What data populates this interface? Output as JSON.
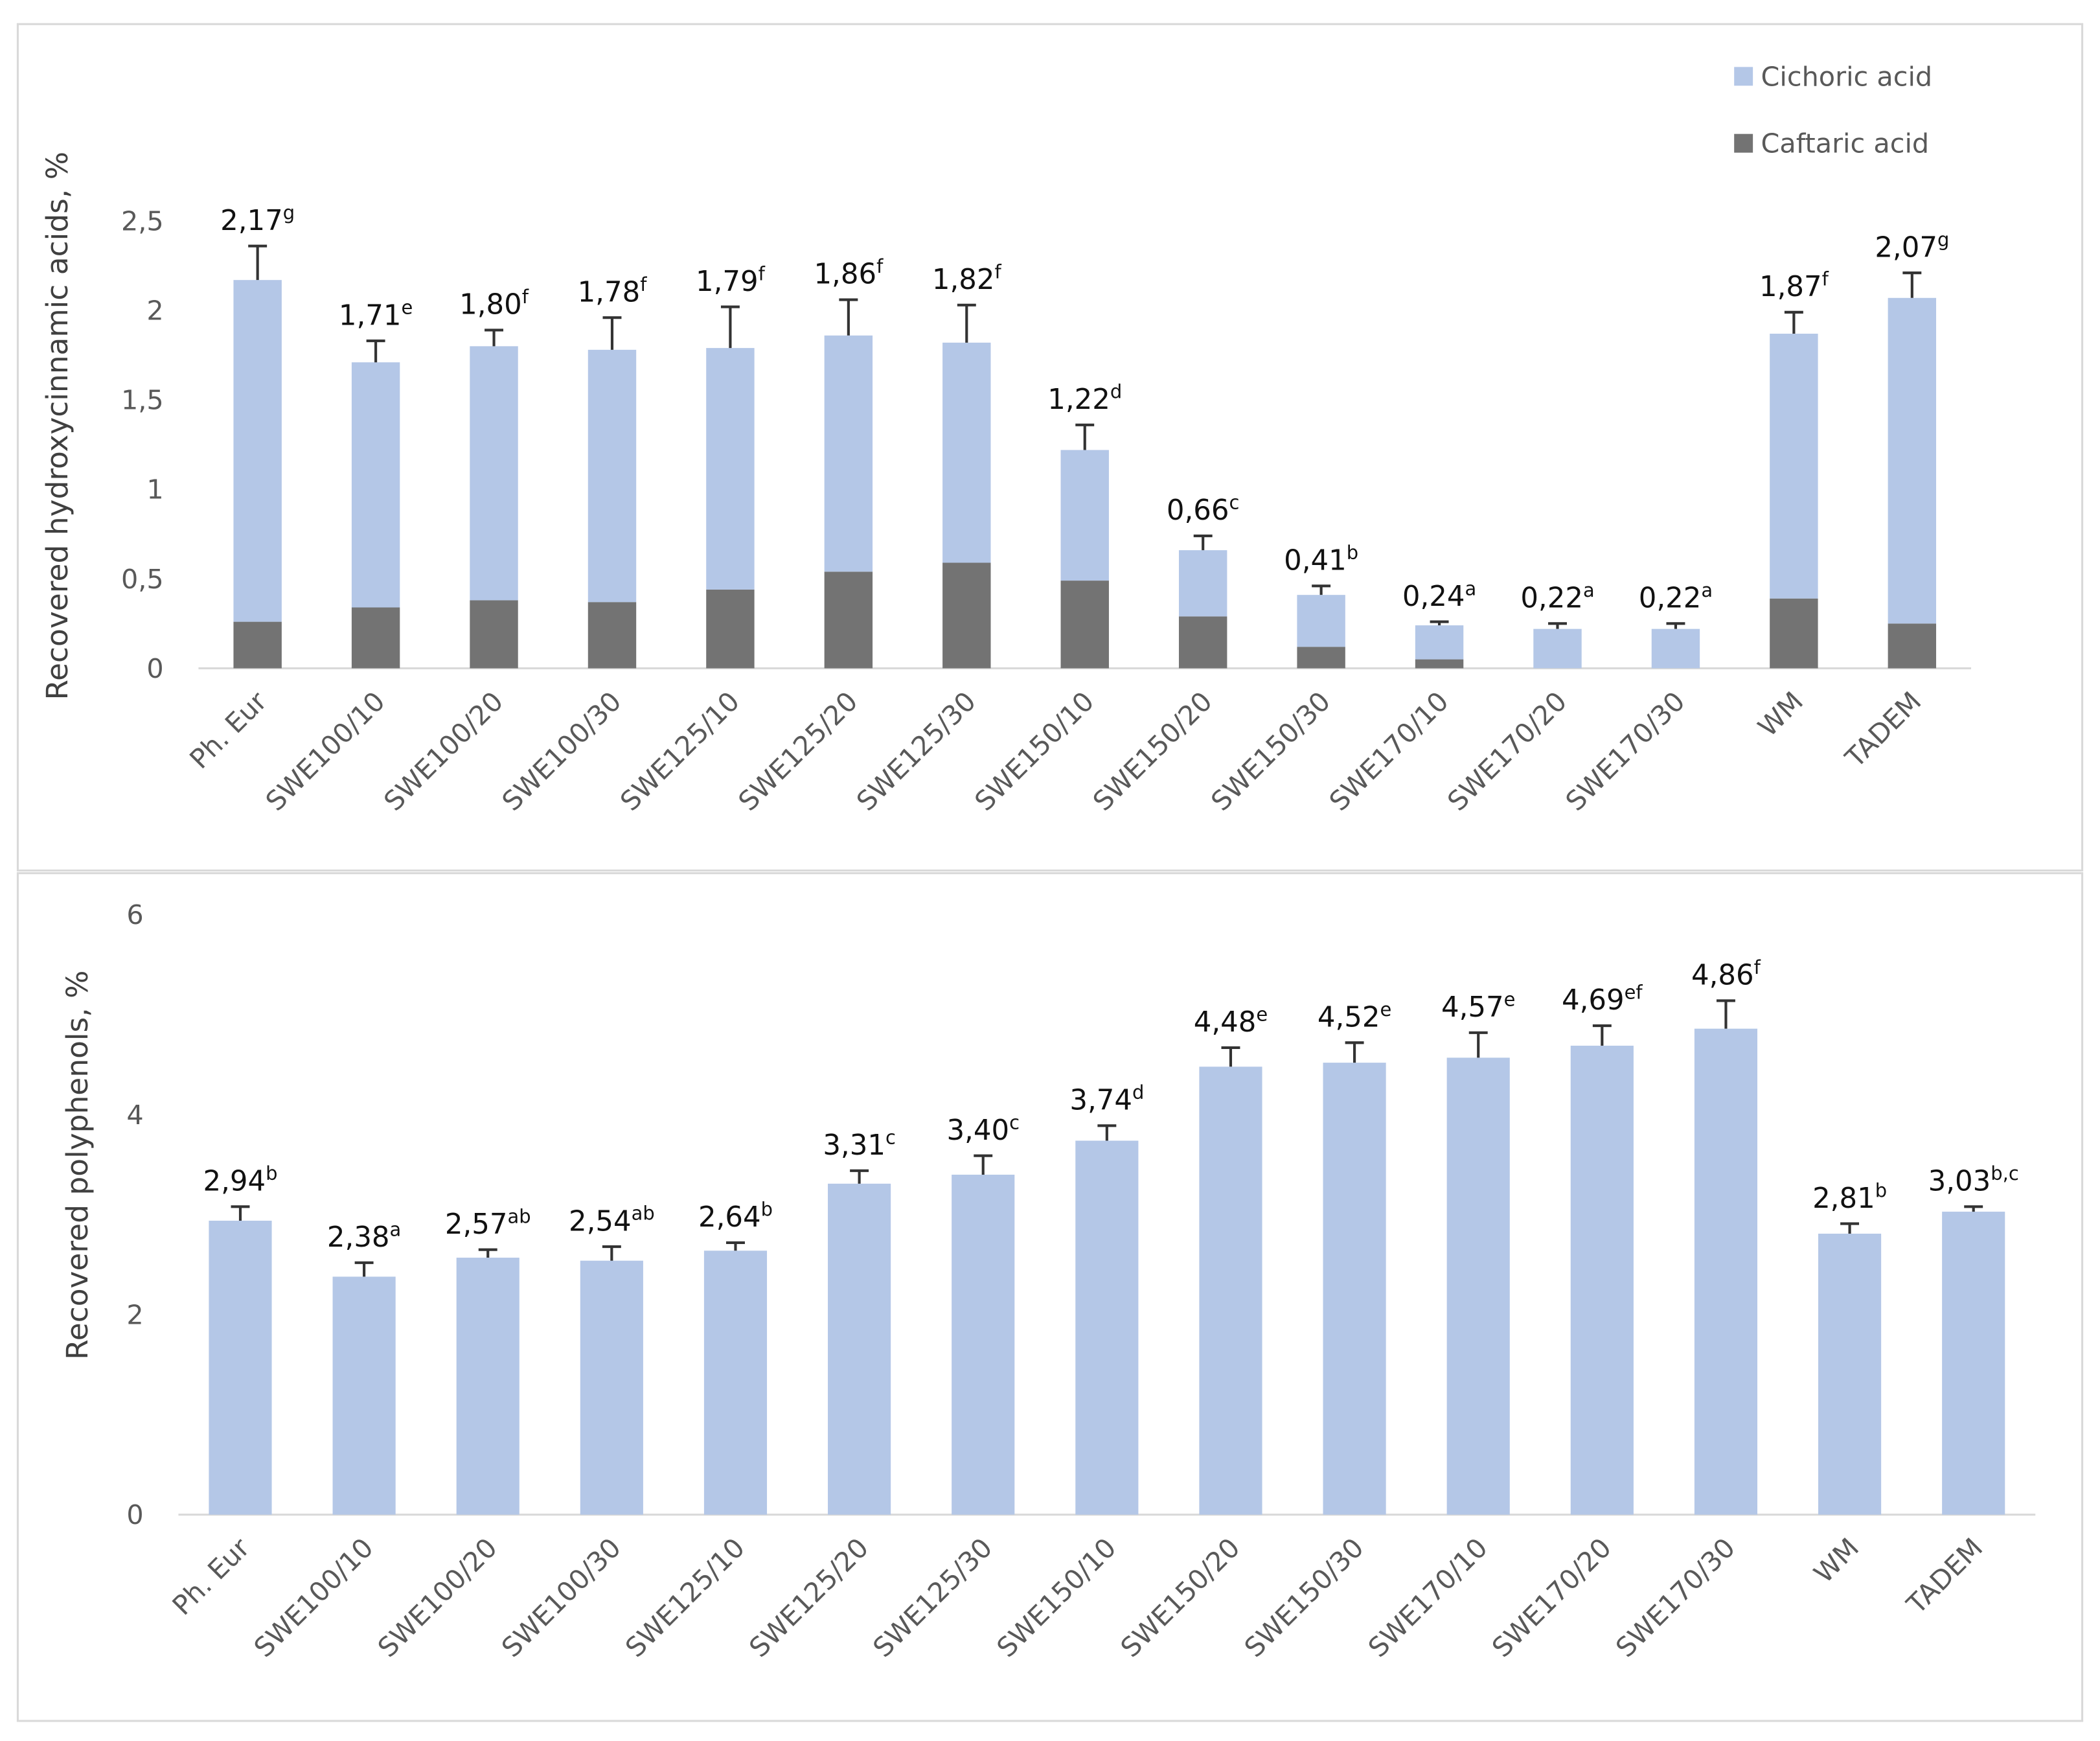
{
  "chart_data": [
    {
      "type": "bar",
      "y_label": "Recovered hydroxycinnamic acids, %",
      "categories": [
        "Ph. Eur",
        "SWE100/10",
        "SWE100/20",
        "SWE100/30",
        "SWE125/10",
        "SWE125/20",
        "SWE125/30",
        "SWE150/10",
        "SWE150/20",
        "SWE150/30",
        "SWE170/10",
        "SWE170/20",
        "SWE170/30",
        "WM",
        "TADEM"
      ],
      "series": [
        {
          "name": "Caftaric acid",
          "color": "#737373",
          "values": [
            0.26,
            0.34,
            0.38,
            0.37,
            0.44,
            0.54,
            0.59,
            0.49,
            0.29,
            0.12,
            0.05,
            0,
            0,
            0.39,
            0.25
          ]
        },
        {
          "name": "Cichoric acid",
          "color": "#b4c7e7",
          "values": [
            1.91,
            1.37,
            1.42,
            1.41,
            1.35,
            1.32,
            1.23,
            0.73,
            0.37,
            0.29,
            0.19,
            0.22,
            0.22,
            1.48,
            1.82
          ]
        }
      ],
      "totals": [
        2.17,
        1.71,
        1.8,
        1.78,
        1.79,
        1.86,
        1.82,
        1.22,
        0.66,
        0.41,
        0.24,
        0.22,
        0.22,
        1.87,
        2.07
      ],
      "total_labels": [
        "2,17",
        "1,71",
        "1,80",
        "1,78",
        "1,79",
        "1,86",
        "1,82",
        "1,22",
        "0,66",
        "0,41",
        "0,24",
        "0,22",
        "0,22",
        "1,87",
        "2,07"
      ],
      "letters": [
        "g",
        "e",
        "f",
        "f",
        "f",
        "f",
        "f",
        "d",
        "c",
        "b",
        "a",
        "a",
        "a",
        "f",
        "g"
      ],
      "errors": [
        0.19,
        0.12,
        0.09,
        0.18,
        0.23,
        0.2,
        0.21,
        0.14,
        0.08,
        0.05,
        0.02,
        0.03,
        0.03,
        0.12,
        0.14
      ],
      "ylim": [
        0,
        2.5
      ],
      "yticks": [
        0,
        {
          "value": 0.5,
          "label": "0,5"
        },
        1,
        {
          "value": 1.5,
          "label": "1,5"
        },
        2,
        {
          "value": 2.5,
          "label": "2,5"
        }
      ],
      "legend": "top-right"
    },
    {
      "type": "bar",
      "y_label": "Recovered polyphenols, %",
      "categories": [
        "Ph. Eur",
        "SWE100/10",
        "SWE100/20",
        "SWE100/30",
        "SWE125/10",
        "SWE125/20",
        "SWE125/30",
        "SWE150/10",
        "SWE150/20",
        "SWE150/30",
        "SWE170/10",
        "SWE170/20",
        "SWE170/30",
        "WM",
        "TADEM"
      ],
      "values": [
        2.94,
        2.38,
        2.57,
        2.54,
        2.64,
        3.31,
        3.4,
        3.74,
        4.48,
        4.52,
        4.57,
        4.69,
        4.86,
        2.81,
        3.03
      ],
      "value_labels": [
        "2,94",
        "2,38",
        "2,57",
        "2,54",
        "2,64",
        "3,31",
        "3,40",
        "3,74",
        "4,48",
        "4,52",
        "4,57",
        "4,69",
        "4,86",
        "2,81",
        "3,03"
      ],
      "letters": [
        "b",
        "a",
        "ab",
        "ab",
        "b",
        "c",
        "c",
        "d",
        "e",
        "e",
        "e",
        "ef",
        "f",
        "b",
        "b,c"
      ],
      "errors": [
        0.14,
        0.14,
        0.08,
        0.14,
        0.08,
        0.13,
        0.19,
        0.15,
        0.19,
        0.2,
        0.25,
        0.2,
        0.28,
        0.1,
        0.05
      ],
      "color": "#b4c7e7",
      "ylim": [
        0,
        6
      ],
      "yticks": [
        0,
        2,
        4,
        6
      ]
    }
  ]
}
